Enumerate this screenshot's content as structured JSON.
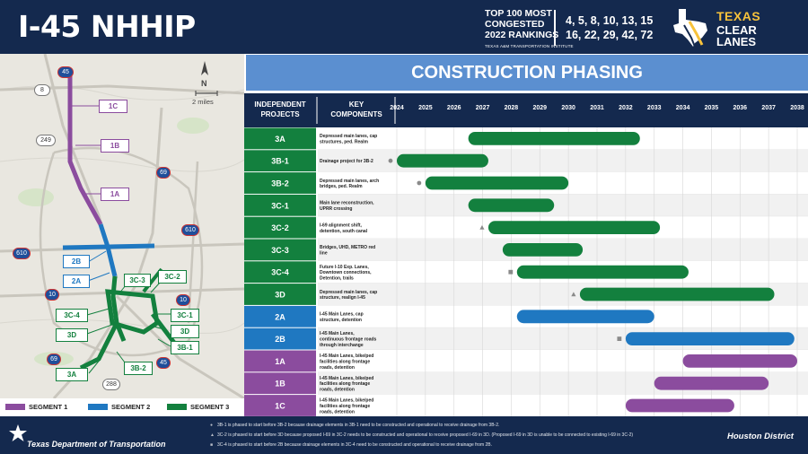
{
  "header": {
    "title": "I-45 NHHIP",
    "ranking_line1": "TOP 100 MOST",
    "ranking_line2": "CONGESTED",
    "ranking_line3": "2022 RANKINGS",
    "ranking_source": "TEXAS A&M TRANSPORTATION INSTITUTE",
    "ranking_numbers_1": "4, 5, 8, 10, 13, 15",
    "ranking_numbers_2": "16, 22, 29, 42, 72",
    "logo_texas": "TEXAS",
    "logo_clear": "CLEAR",
    "logo_lanes": "LANES"
  },
  "map": {
    "north": "N",
    "scale": "2 miles",
    "route_shields": [
      "45",
      "8",
      "249",
      "69",
      "610",
      "610",
      "10",
      "10",
      "69",
      "45",
      "288"
    ],
    "segment_labels": [
      "1C",
      "1B",
      "1A",
      "2B",
      "2A",
      "3C-3",
      "3C-2",
      "3C-4",
      "3D",
      "3C-1",
      "3D",
      "3B-1",
      "3A",
      "3B-2"
    ],
    "legend": [
      {
        "label": "SEGMENT 1",
        "color": "#8b4c9e"
      },
      {
        "label": "SEGMENT 2",
        "color": "#1f78c1"
      },
      {
        "label": "SEGMENT 3",
        "color": "#13803e"
      }
    ]
  },
  "chart_data": {
    "type": "gantt",
    "title": "CONSTRUCTION PHASING",
    "col_projects": "INDEPENDENT PROJECTS",
    "col_components": "KEY COMPONENTS",
    "years": [
      "2024",
      "2025",
      "2026",
      "2027",
      "2028",
      "2029",
      "2030",
      "2031",
      "2032",
      "2033",
      "2034",
      "2035",
      "2036",
      "2037",
      "2038"
    ],
    "rows": [
      {
        "id": "3A",
        "segment": 3,
        "desc": "Depressed main lanes, cap structures, ped. Realm",
        "start": 2026.5,
        "end": 2032.5,
        "marker": null
      },
      {
        "id": "3B-1",
        "segment": 3,
        "desc": "Drainage project for 3B-2",
        "start": 2024.0,
        "end": 2027.2,
        "marker": "circle"
      },
      {
        "id": "3B-2",
        "segment": 3,
        "desc": "Depressed main lanes, arch bridges, ped. Realm",
        "start": 2025.0,
        "end": 2030.0,
        "marker": "circle"
      },
      {
        "id": "3C-1",
        "segment": 3,
        "desc": "Main lane reconstruction, UPRR crossing",
        "start": 2026.5,
        "end": 2029.5,
        "marker": null
      },
      {
        "id": "3C-2",
        "segment": 3,
        "desc": "I-69 alignment shift, detention, south canal",
        "start": 2027.2,
        "end": 2033.2,
        "marker": "triangle"
      },
      {
        "id": "3C-3",
        "segment": 3,
        "desc": "Bridges, UHD, METRO red line",
        "start": 2027.7,
        "end": 2030.5,
        "marker": null
      },
      {
        "id": "3C-4",
        "segment": 3,
        "desc": "Future I-10 Exp. Lanes, Downtown connections, Detention, trails",
        "start": 2028.2,
        "end": 2034.2,
        "marker": "square"
      },
      {
        "id": "3D",
        "segment": 3,
        "desc": "Depressed main lanes, cap structure, realign I-45",
        "start": 2030.4,
        "end": 2037.2,
        "marker": "triangle"
      },
      {
        "id": "2A",
        "segment": 2,
        "desc": "I-45 Main Lanes, cap structure, detention",
        "start": 2028.2,
        "end": 2033.0,
        "marker": null
      },
      {
        "id": "2B",
        "segment": 2,
        "desc": "I-45 Main Lanes, continuous frontage roads through interchange",
        "start": 2032.0,
        "end": 2037.9,
        "marker": "square"
      },
      {
        "id": "1A",
        "segment": 1,
        "desc": "I-45 Main Lanes, bike/ped facilities along frontage roads, detention",
        "start": 2034.0,
        "end": 2038.0,
        "marker": null
      },
      {
        "id": "1B",
        "segment": 1,
        "desc": "I-45 Main Lanes, bike/ped facilities along frontage roads, detention",
        "start": 2033.0,
        "end": 2037.0,
        "marker": null
      },
      {
        "id": "1C",
        "segment": 1,
        "desc": "I-45 Main Lanes, bike/ped facilities along frontage roads, detention",
        "start": 2032.0,
        "end": 2035.8,
        "marker": null
      }
    ],
    "colors": {
      "segment1": "#8b4c9e",
      "segment2": "#1f78c1",
      "segment3": "#13803e",
      "header": "#14294e",
      "milestone": "#8a8a8a"
    }
  },
  "footer": {
    "agency": "Texas Department of Transportation",
    "district": "Houston District",
    "notes": [
      {
        "symbol": "circle",
        "text": "3B-1 is phased to start before 3B-2 because drainage elements in 3B-1 need to be constructed and operational to receive drainage from 3B-2."
      },
      {
        "symbol": "triangle",
        "text": "3C-2 is phased to start before 3D because proposed I-69 in 3C-2 needs to be constructed and operational to receive proposed I-69 in 3D. (Proposed I-69 in 3D is unable to be connected to existing I-69 in 3C-2)"
      },
      {
        "symbol": "square",
        "text": "3C-4 is phased to start before 2B because drainage elements in 3C-4 need to be constructed and operational to receive drainage from 2B."
      }
    ]
  }
}
